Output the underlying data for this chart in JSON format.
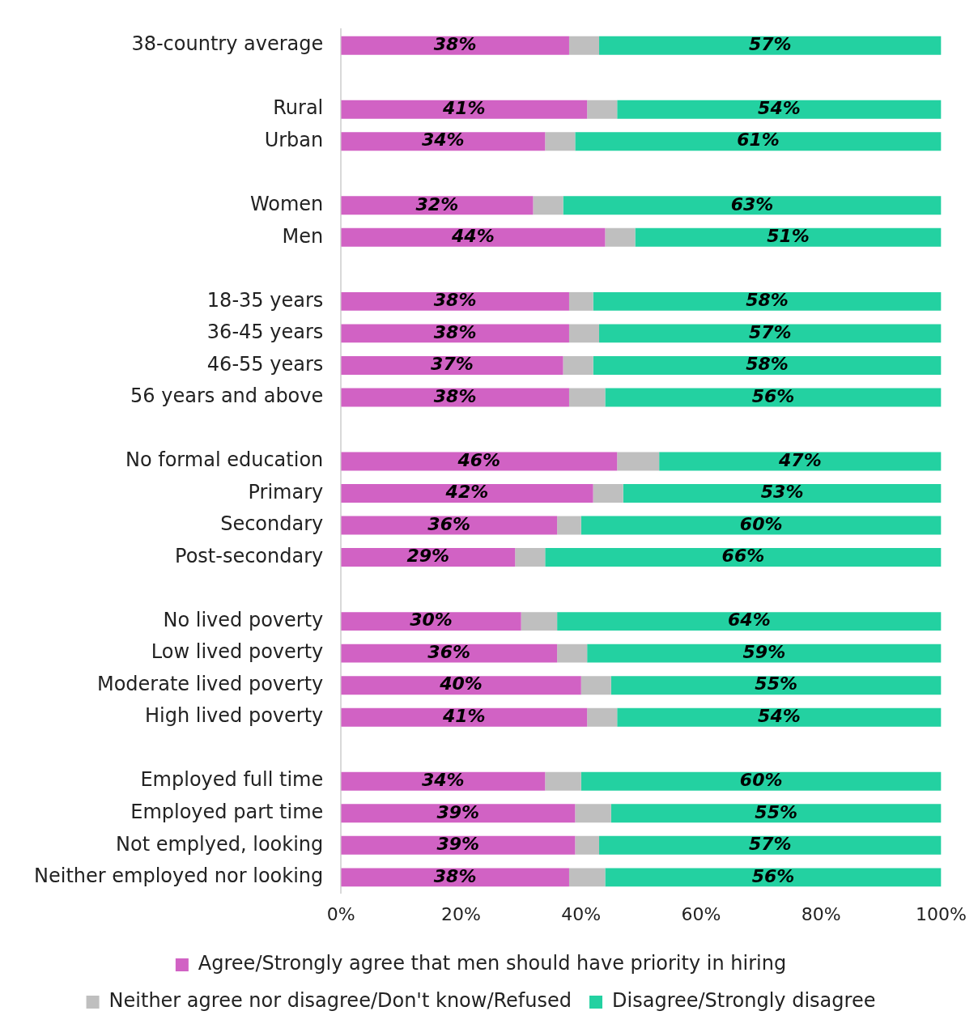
{
  "chart_data": {
    "type": "bar",
    "orientation": "horizontal",
    "stacked": true,
    "grid": false,
    "legend": "bottom",
    "categories": [
      "38-country average",
      null,
      "Rural",
      "Urban",
      null,
      "Women",
      "Men",
      null,
      "18-35 years",
      "36-45 years",
      "46-55 years",
      "56 years and above",
      null,
      "No formal education",
      "Primary",
      "Secondary",
      "Post-secondary",
      null,
      "No lived poverty",
      "Low lived poverty",
      "Moderate lived poverty",
      "High lived poverty",
      null,
      "Employed full time",
      "Employed part time",
      "Not emplyed, looking",
      "Neither employed nor looking"
    ],
    "xlim": [
      0,
      100
    ],
    "xticks": [
      {
        "value": 0,
        "label": "0%"
      },
      {
        "value": 20,
        "label": "20%"
      },
      {
        "value": 40,
        "label": "40%"
      },
      {
        "value": 60,
        "label": "60%"
      },
      {
        "value": 80,
        "label": "80%"
      },
      {
        "value": 100,
        "label": "100%"
      }
    ],
    "series": [
      {
        "name": "Agree/Strongly agree that men should have priority in hiring",
        "color": "#d162c4",
        "values": [
          38,
          null,
          41,
          34,
          null,
          32,
          44,
          null,
          38,
          38,
          37,
          38,
          null,
          46,
          42,
          36,
          29,
          null,
          30,
          36,
          40,
          41,
          null,
          34,
          39,
          39,
          38
        ],
        "value_labels": [
          "38%",
          null,
          "41%",
          "34%",
          null,
          "32%",
          "44%",
          null,
          "38%",
          "38%",
          "37%",
          "38%",
          null,
          "46%",
          "42%",
          "36%",
          "29%",
          null,
          "30%",
          "36%",
          "40%",
          "41%",
          null,
          "34%",
          "39%",
          "39%",
          "38%"
        ]
      },
      {
        "name": "Neither agree nor disagree/Don't know/Refused",
        "color": "#bfbfbf",
        "values": [
          5,
          null,
          5,
          5,
          null,
          5,
          5,
          null,
          4,
          5,
          5,
          6,
          null,
          7,
          5,
          4,
          5,
          null,
          6,
          5,
          5,
          5,
          null,
          6,
          6,
          4,
          6
        ]
      },
      {
        "name": "Disagree/Strongly disagree",
        "color": "#23d1a1",
        "values": [
          57,
          null,
          54,
          61,
          null,
          63,
          51,
          null,
          58,
          57,
          58,
          56,
          null,
          47,
          53,
          60,
          66,
          null,
          64,
          59,
          55,
          54,
          null,
          60,
          55,
          57,
          56
        ],
        "value_labels": [
          "57%",
          null,
          "54%",
          "61%",
          null,
          "63%",
          "51%",
          null,
          "58%",
          "57%",
          "58%",
          "56%",
          null,
          "47%",
          "53%",
          "60%",
          "66%",
          null,
          "64%",
          "59%",
          "55%",
          "54%",
          null,
          "60%",
          "55%",
          "57%",
          "56%"
        ]
      }
    ]
  }
}
